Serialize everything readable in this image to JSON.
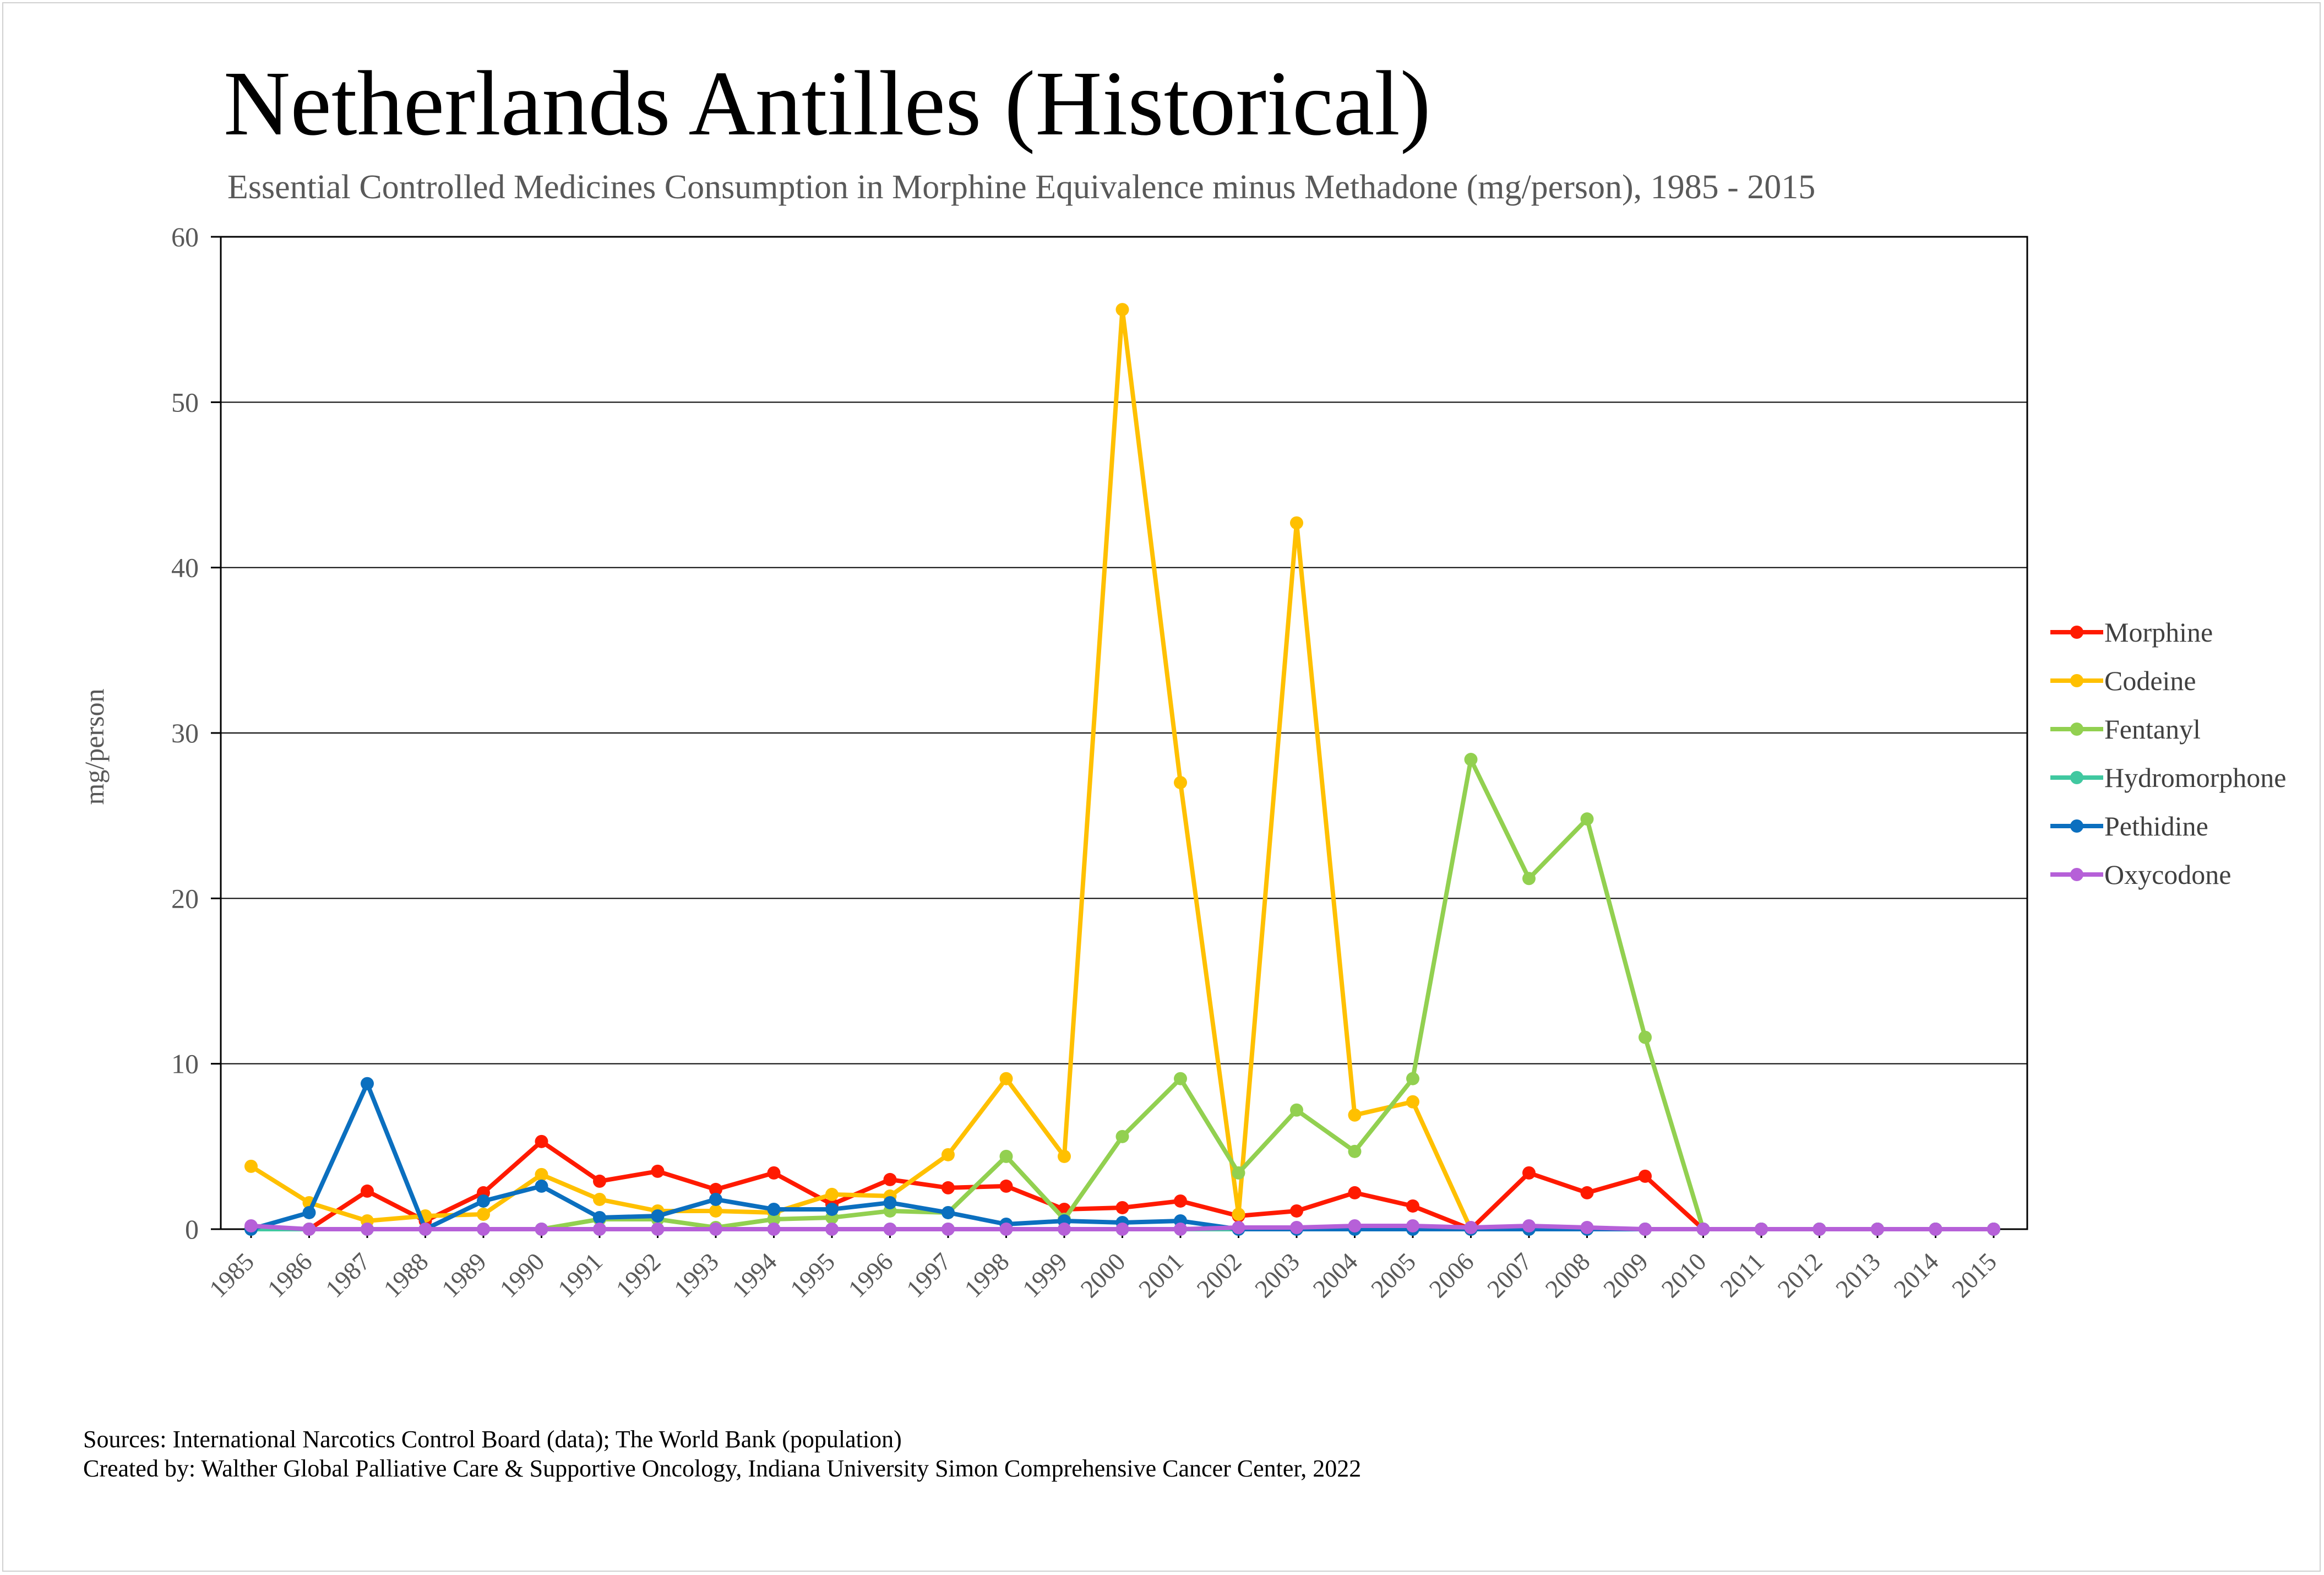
{
  "chart_data": {
    "type": "line",
    "title": "Netherlands Antilles (Historical)",
    "subtitle": "Essential Controlled Medicines Consumption in Morphine Equivalence minus Methadone (mg/person), 1985 - 2015",
    "xlabel": "",
    "ylabel": "mg/person",
    "ylim": [
      0,
      60
    ],
    "yticks": [
      0,
      10,
      20,
      30,
      40,
      50,
      60
    ],
    "grid": true,
    "legend_position": "right",
    "x": [
      "1985",
      "1986",
      "1987",
      "1988",
      "1989",
      "1990",
      "1991",
      "1992",
      "1993",
      "1994",
      "1995",
      "1996",
      "1997",
      "1998",
      "1999",
      "2000",
      "2001",
      "2002",
      "2003",
      "2004",
      "2005",
      "2006",
      "2007",
      "2008",
      "2009",
      "2010",
      "2011",
      "2012",
      "2013",
      "2014",
      "2015"
    ],
    "series": [
      {
        "name": "Morphine",
        "color": "#ff1a00",
        "values": [
          0.1,
          0,
          2.3,
          0.5,
          2.2,
          5.3,
          2.9,
          3.5,
          2.4,
          3.4,
          1.5,
          3.0,
          2.5,
          2.6,
          1.2,
          1.3,
          1.7,
          0.8,
          1.1,
          2.2,
          1.4,
          0,
          3.4,
          2.2,
          3.2,
          0,
          0,
          0,
          0,
          0,
          0
        ]
      },
      {
        "name": "Codeine",
        "color": "#ffc000",
        "values": [
          3.8,
          1.6,
          0.5,
          0.8,
          0.9,
          3.3,
          1.8,
          1.1,
          1.1,
          1.0,
          2.1,
          2.0,
          4.5,
          9.1,
          4.4,
          55.6,
          27.0,
          0.9,
          42.7,
          6.9,
          7.7,
          0,
          0,
          0,
          0,
          0,
          0,
          0,
          0,
          0,
          0
        ]
      },
      {
        "name": "Fentanyl",
        "color": "#92d050",
        "values": [
          0,
          0,
          0,
          0,
          0,
          0,
          0.6,
          0.6,
          0.1,
          0.6,
          0.7,
          1.1,
          1.0,
          4.4,
          0.6,
          5.6,
          9.1,
          3.4,
          7.2,
          4.7,
          9.1,
          28.4,
          21.2,
          24.8,
          11.6,
          0,
          0,
          0,
          0,
          0,
          0
        ]
      },
      {
        "name": "Hydromorphone",
        "color": "#40c8a0",
        "values": [
          0,
          0,
          0,
          0,
          0,
          0,
          0,
          0,
          0,
          0,
          0,
          0,
          0,
          0,
          0,
          0,
          0,
          0,
          0,
          0,
          0,
          0,
          0,
          0,
          0,
          0,
          0,
          0,
          0,
          0,
          0
        ]
      },
      {
        "name": "Pethidine",
        "color": "#0b6fbf",
        "values": [
          0,
          1.0,
          8.8,
          0,
          1.7,
          2.6,
          0.7,
          0.8,
          1.8,
          1.2,
          1.2,
          1.6,
          1.0,
          0.3,
          0.5,
          0.4,
          0.5,
          0,
          0,
          0,
          0,
          0,
          0,
          0,
          0,
          0,
          0,
          0,
          0,
          0,
          0
        ]
      },
      {
        "name": "Oxycodone",
        "color": "#b660d8",
        "values": [
          0.2,
          0,
          0,
          0,
          0,
          0,
          0,
          0,
          0,
          0,
          0,
          0,
          0,
          0,
          0,
          0,
          0,
          0.1,
          0.1,
          0.2,
          0.2,
          0.1,
          0.2,
          0.1,
          0,
          0,
          0,
          0,
          0,
          0,
          0
        ]
      }
    ]
  },
  "sources": "Sources: International Narcotics Control Board (data); The World Bank (population)",
  "created_by": "Created by: Walther Global Palliative Care & Supportive Oncology, Indiana University Simon Comprehensive Cancer Center, 2022"
}
